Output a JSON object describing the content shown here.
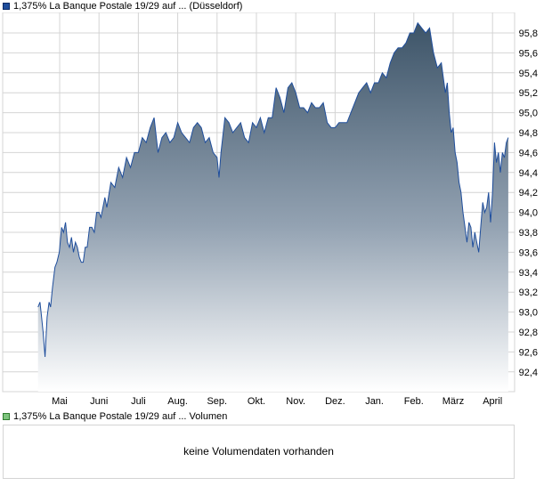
{
  "price_legend": {
    "label": "1,375% La Banque Postale 19/29 auf ... (Düsseldorf)",
    "color": "#1f4e9c"
  },
  "volume_legend": {
    "label": "1,375% La Banque Postale 19/29 auf ... Volumen",
    "color": "#7ec47e"
  },
  "volume_panel": {
    "message": "keine Volumendaten vorhanden"
  },
  "chart_data": {
    "type": "area",
    "title": "",
    "xlabel": "",
    "ylabel": "",
    "ylim": [
      92.25,
      96.0
    ],
    "y_ticks": [
      "95,8",
      "95,6",
      "95,4",
      "95,2",
      "95,0",
      "94,8",
      "94,6",
      "94,4",
      "94,2",
      "94,0",
      "93,8",
      "93,6",
      "93,4",
      "93,2",
      "93,0",
      "92,8",
      "92,6",
      "92,4"
    ],
    "y_tick_values": [
      95.8,
      95.6,
      95.4,
      95.2,
      95.0,
      94.8,
      94.6,
      94.4,
      94.2,
      94.0,
      93.8,
      93.6,
      93.4,
      93.2,
      93.0,
      92.8,
      92.6,
      92.4
    ],
    "x_ticks": [
      "Mai",
      "Juni",
      "Juli",
      "Aug.",
      "Sep.",
      "Okt.",
      "Nov.",
      "Dez.",
      "Jan.",
      "Feb.",
      "März",
      "April"
    ],
    "x_range": [
      0,
      12.3
    ],
    "grid": true,
    "legend": "top-left",
    "colors": {
      "line": "#1f4e9c",
      "fill_top": "#3d5468",
      "fill_bottom": "#ffffff",
      "grid": "#d4d4d4"
    },
    "series": [
      {
        "name": "1,375% La Banque Postale 19/29 auf ... (Düsseldorf)",
        "x": [
          -0.55,
          -0.5,
          -0.46,
          -0.42,
          -0.37,
          -0.32,
          -0.27,
          -0.23,
          -0.18,
          -0.12,
          -0.07,
          -0.01,
          0.05,
          0.1,
          0.15,
          0.2,
          0.25,
          0.3,
          0.35,
          0.4,
          0.45,
          0.5,
          0.55,
          0.6,
          0.65,
          0.7,
          0.76,
          0.82,
          0.88,
          0.94,
          1.0,
          1.05,
          1.1,
          1.15,
          1.2,
          1.3,
          1.4,
          1.5,
          1.6,
          1.7,
          1.8,
          1.9,
          2.0,
          2.1,
          2.2,
          2.3,
          2.4,
          2.5,
          2.6,
          2.7,
          2.8,
          2.9,
          3.0,
          3.1,
          3.2,
          3.3,
          3.4,
          3.5,
          3.6,
          3.7,
          3.8,
          3.9,
          4.0,
          4.05,
          4.1,
          4.2,
          4.3,
          4.4,
          4.5,
          4.6,
          4.7,
          4.8,
          4.9,
          5.0,
          5.1,
          5.2,
          5.3,
          5.4,
          5.5,
          5.6,
          5.7,
          5.8,
          5.9,
          6.0,
          6.1,
          6.2,
          6.3,
          6.4,
          6.5,
          6.6,
          6.7,
          6.8,
          6.9,
          7.0,
          7.1,
          7.2,
          7.3,
          7.4,
          7.5,
          7.6,
          7.7,
          7.8,
          7.9,
          8.0,
          8.1,
          8.2,
          8.3,
          8.4,
          8.5,
          8.6,
          8.7,
          8.8,
          8.9,
          9.0,
          9.1,
          9.2,
          9.3,
          9.4,
          9.5,
          9.6,
          9.7,
          9.8,
          9.85,
          9.9,
          9.95,
          10.0,
          10.05,
          10.1,
          10.15,
          10.2,
          10.25,
          10.3,
          10.35,
          10.4,
          10.45,
          10.5,
          10.55,
          10.6,
          10.65,
          10.7,
          10.75,
          10.8,
          10.85,
          10.9,
          10.95,
          11.0,
          11.05,
          11.1,
          11.15,
          11.2,
          11.25,
          11.3,
          11.35,
          11.4
        ],
        "values": [
          93.05,
          93.1,
          92.95,
          92.8,
          92.55,
          92.95,
          93.1,
          93.05,
          93.25,
          93.45,
          93.5,
          93.6,
          93.85,
          93.8,
          93.9,
          93.7,
          93.65,
          93.75,
          93.6,
          93.7,
          93.65,
          93.55,
          93.5,
          93.5,
          93.65,
          93.65,
          93.85,
          93.85,
          93.8,
          94.0,
          94.0,
          93.95,
          94.05,
          94.15,
          94.05,
          94.3,
          94.25,
          94.45,
          94.35,
          94.55,
          94.45,
          94.6,
          94.6,
          94.75,
          94.7,
          94.85,
          94.95,
          94.6,
          94.75,
          94.8,
          94.7,
          94.75,
          94.9,
          94.8,
          94.75,
          94.7,
          94.85,
          94.9,
          94.85,
          94.7,
          94.75,
          94.6,
          94.55,
          94.35,
          94.6,
          94.95,
          94.9,
          94.8,
          94.85,
          94.9,
          94.75,
          94.7,
          94.9,
          94.85,
          94.95,
          94.8,
          94.95,
          94.95,
          95.25,
          95.15,
          95.0,
          95.25,
          95.3,
          95.2,
          95.05,
          95.05,
          95.0,
          95.1,
          95.05,
          95.05,
          95.1,
          94.9,
          94.85,
          94.85,
          94.9,
          94.9,
          94.9,
          95.0,
          95.1,
          95.2,
          95.25,
          95.3,
          95.2,
          95.3,
          95.3,
          95.4,
          95.35,
          95.5,
          95.6,
          95.65,
          95.65,
          95.7,
          95.8,
          95.8,
          95.9,
          95.85,
          95.8,
          95.85,
          95.6,
          95.45,
          95.5,
          95.2,
          95.3,
          95.0,
          94.8,
          94.85,
          94.6,
          94.5,
          94.3,
          94.2,
          94.0,
          93.85,
          93.7,
          93.9,
          93.85,
          93.65,
          93.8,
          93.7,
          93.6,
          93.85,
          94.1,
          94.0,
          94.05,
          94.2,
          93.9,
          94.2,
          94.7,
          94.5,
          94.6,
          94.4,
          94.6,
          94.55,
          94.7,
          94.75
        ]
      }
    ]
  }
}
